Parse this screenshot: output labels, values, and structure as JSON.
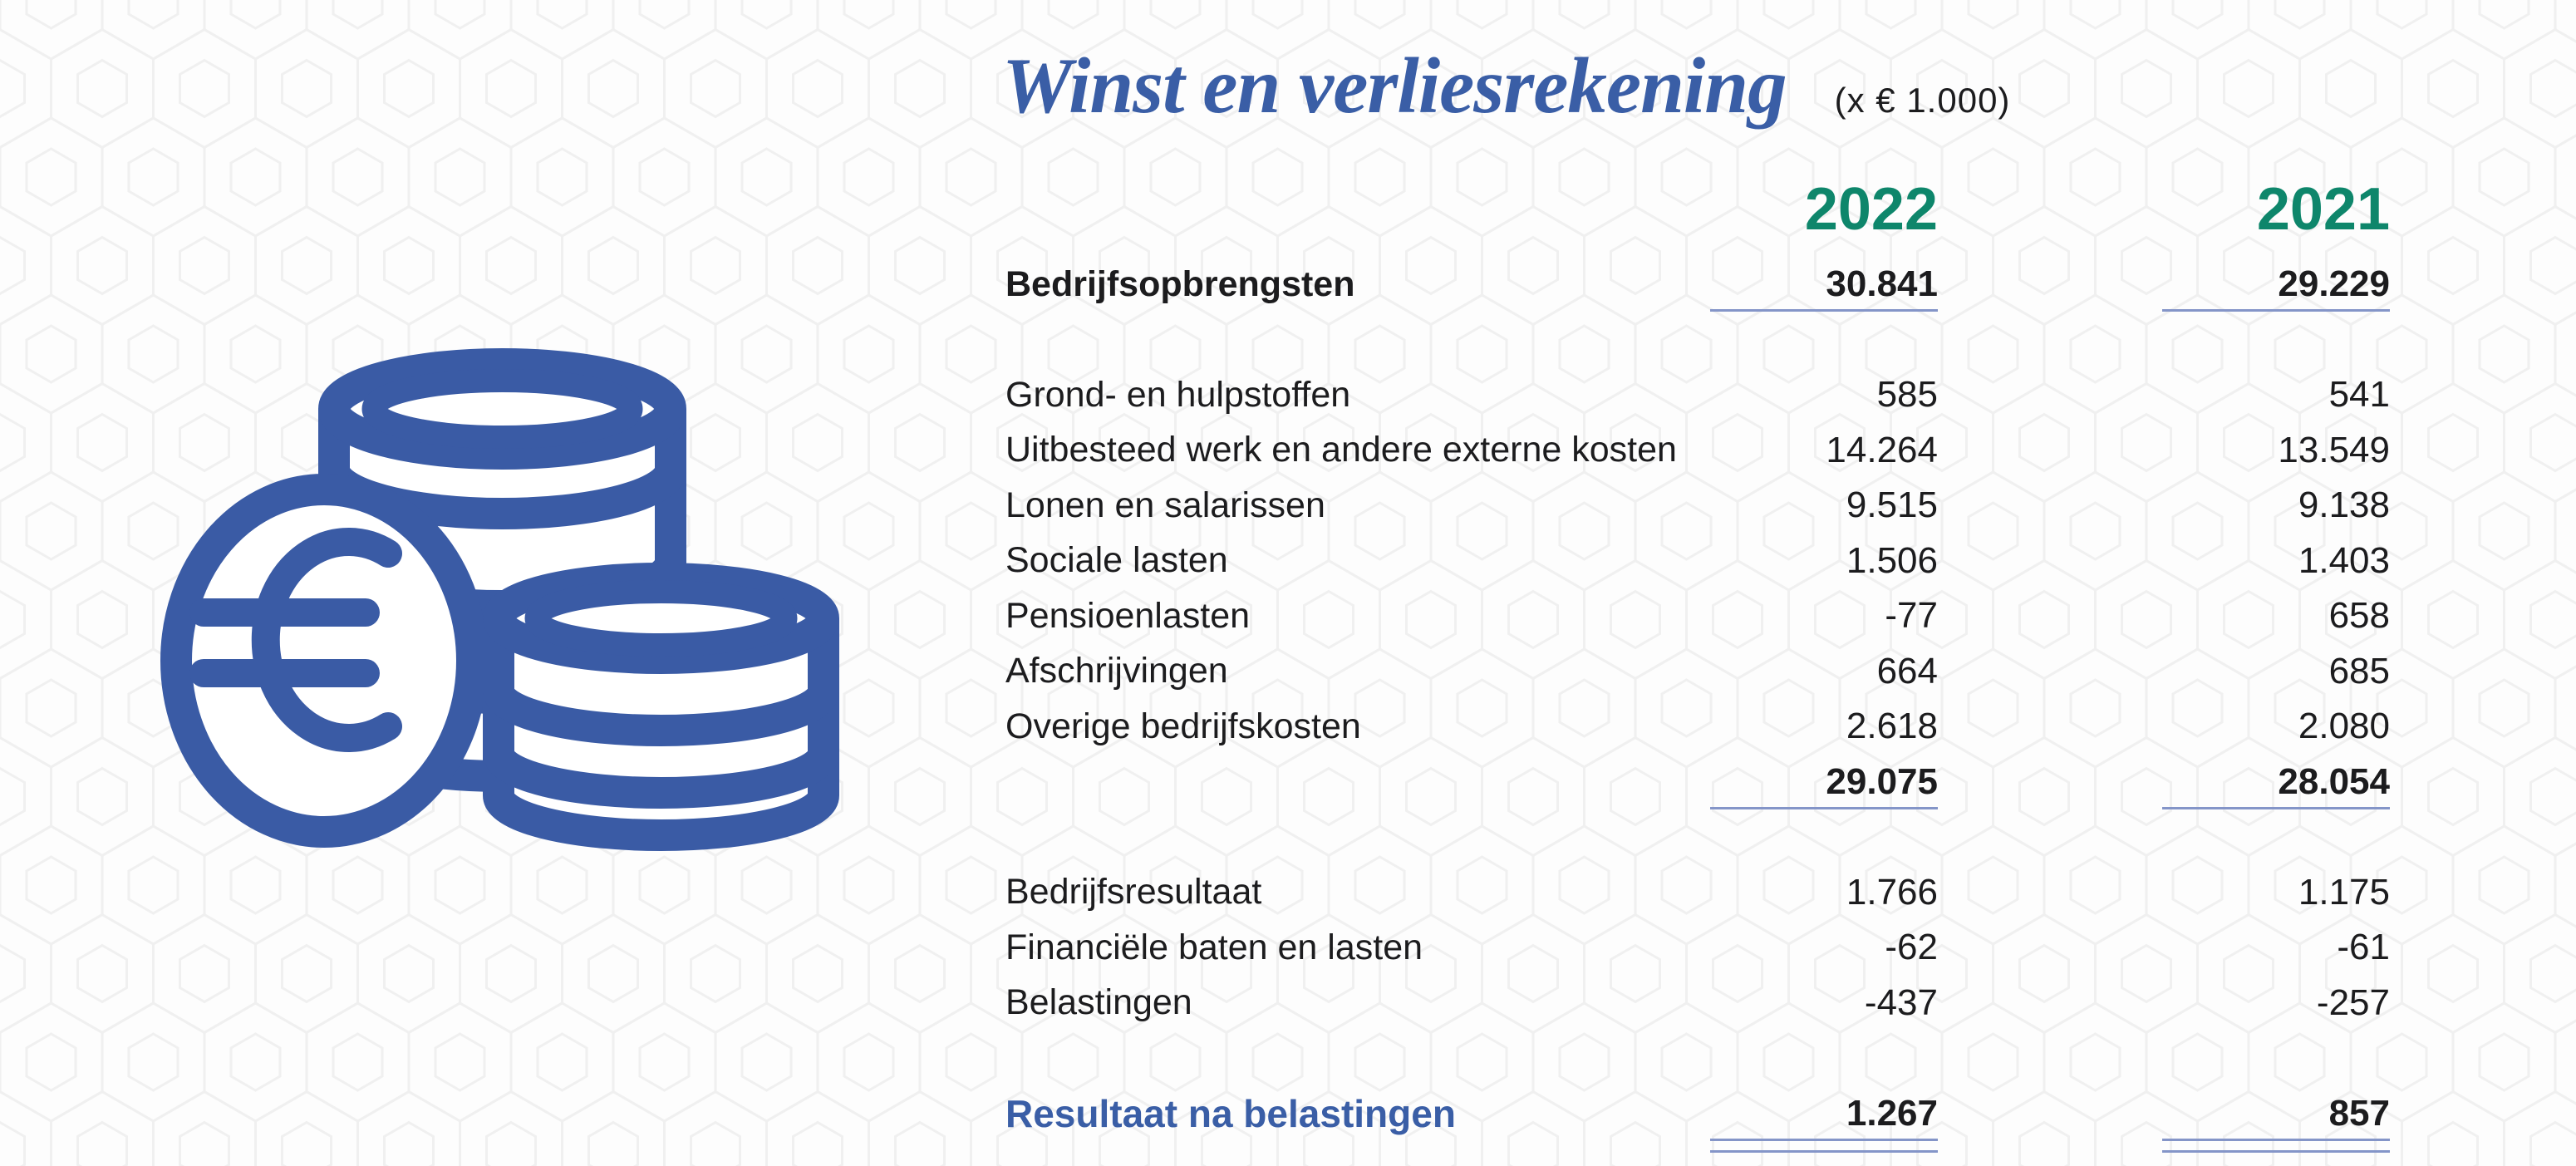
{
  "page": {
    "background_color": "#fdfdfd",
    "pattern": "hexagon-honeycomb",
    "pattern_line_color": "#f0f0f0"
  },
  "colors": {
    "brand_blue": "#3a5ea6",
    "teal_header": "#0e866b",
    "underline_blue": "#8495c8",
    "text": "#1c1c1e"
  },
  "header": {
    "title": "Winst en verliesrekening",
    "unit_note": "(x € 1.000)"
  },
  "icon": {
    "name": "euro-coins-icon",
    "color": "#3a5ba5"
  },
  "table": {
    "year_columns": [
      {
        "label": "2022"
      },
      {
        "label": "2021"
      }
    ],
    "rows": [
      {
        "type": "total",
        "label": "Bedrijfsopbrengsten",
        "values": [
          "30.841",
          "29.229"
        ],
        "underline": "single"
      },
      {
        "type": "spacer"
      },
      {
        "type": "item",
        "label": "Grond- en hulpstoffen",
        "values": [
          "585",
          "541"
        ],
        "underline": "none"
      },
      {
        "type": "item",
        "label": "Uitbesteed werk en andere externe kosten",
        "values": [
          "14.264",
          "13.549"
        ],
        "underline": "none"
      },
      {
        "type": "item",
        "label": "Lonen en salarissen",
        "values": [
          "9.515",
          "9.138"
        ],
        "underline": "none"
      },
      {
        "type": "item",
        "label": "Sociale lasten",
        "values": [
          "1.506",
          "1.403"
        ],
        "underline": "none"
      },
      {
        "type": "item",
        "label": "Pensioenlasten",
        "values": [
          "-77",
          "658"
        ],
        "underline": "none"
      },
      {
        "type": "item",
        "label": "Afschrijvingen",
        "values": [
          "664",
          "685"
        ],
        "underline": "none"
      },
      {
        "type": "item",
        "label": "Overige bedrijfskosten",
        "values": [
          "2.618",
          "2.080"
        ],
        "underline": "none"
      },
      {
        "type": "subtotal",
        "label": "",
        "values": [
          "29.075",
          "28.054"
        ],
        "underline": "single"
      },
      {
        "type": "spacer"
      },
      {
        "type": "item",
        "label": "Bedrijfsresultaat",
        "values": [
          "1.766",
          "1.175"
        ],
        "underline": "none"
      },
      {
        "type": "item",
        "label": "Financiële baten en lasten",
        "values": [
          "-62",
          "-61"
        ],
        "underline": "none"
      },
      {
        "type": "item",
        "label": "Belastingen",
        "values": [
          "-437",
          "-257"
        ],
        "underline": "none"
      },
      {
        "type": "spacer"
      },
      {
        "type": "result",
        "label": "Resultaat na belastingen",
        "values": [
          "1.267",
          "857"
        ],
        "underline": "double"
      }
    ]
  }
}
